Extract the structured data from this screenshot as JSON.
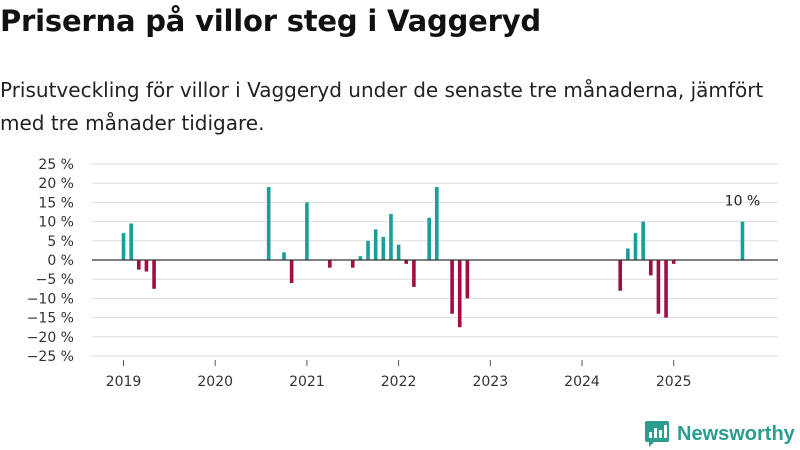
{
  "title": "Priserna på villor steg i Vaggeryd",
  "subtitle": "Prisutveckling för villor i Vaggeryd under de senaste tre månaderna, jämfört med tre månader tidigare.",
  "brand": {
    "name": "Newsworthy",
    "color": "#2a9d8f",
    "icon": "newsworthy-logo-icon"
  },
  "chart_data": {
    "type": "bar",
    "title": "Priserna på villor steg i Vaggeryd",
    "xlabel": "",
    "ylabel": "",
    "ylim": [
      -25,
      25
    ],
    "yticks": [
      25,
      20,
      15,
      10,
      5,
      0,
      -5,
      -10,
      -15,
      -20,
      -25
    ],
    "ytick_labels": [
      "25 %",
      "20 %",
      "15 %",
      "10 %",
      "5 %",
      "0 %",
      "−5 %",
      "−10 %",
      "−15 %",
      "−20 %",
      "−25 %"
    ],
    "x_ticks": [
      "2019",
      "2020",
      "2021",
      "2022",
      "2023",
      "2024",
      "2025"
    ],
    "grid": true,
    "colors": {
      "positive": "#1a9e99",
      "negative": "#9e0e44"
    },
    "annotation": {
      "month": "2025-10",
      "label": "10 %"
    },
    "series": [
      {
        "name": "Prisutveckling",
        "points": [
          {
            "month": "2019-01",
            "value": 7
          },
          {
            "month": "2019-02",
            "value": 9.5
          },
          {
            "month": "2019-03",
            "value": -2.5
          },
          {
            "month": "2019-04",
            "value": -3
          },
          {
            "month": "2019-05",
            "value": -7.5
          },
          {
            "month": "2020-08",
            "value": 19
          },
          {
            "month": "2020-10",
            "value": 2
          },
          {
            "month": "2020-11",
            "value": -6
          },
          {
            "month": "2021-01",
            "value": 15
          },
          {
            "month": "2021-04",
            "value": -2
          },
          {
            "month": "2021-07",
            "value": -2
          },
          {
            "month": "2021-08",
            "value": 1
          },
          {
            "month": "2021-09",
            "value": 5
          },
          {
            "month": "2021-10",
            "value": 8
          },
          {
            "month": "2021-11",
            "value": 6
          },
          {
            "month": "2021-12",
            "value": 12
          },
          {
            "month": "2022-01",
            "value": 4
          },
          {
            "month": "2022-02",
            "value": -1
          },
          {
            "month": "2022-03",
            "value": -7
          },
          {
            "month": "2022-05",
            "value": 11
          },
          {
            "month": "2022-06",
            "value": 19
          },
          {
            "month": "2022-08",
            "value": -14
          },
          {
            "month": "2022-09",
            "value": -17.5
          },
          {
            "month": "2022-10",
            "value": -10
          },
          {
            "month": "2024-06",
            "value": -8
          },
          {
            "month": "2024-07",
            "value": 3
          },
          {
            "month": "2024-08",
            "value": 7
          },
          {
            "month": "2024-09",
            "value": 10
          },
          {
            "month": "2024-10",
            "value": -4
          },
          {
            "month": "2024-11",
            "value": -14
          },
          {
            "month": "2024-12",
            "value": -15
          },
          {
            "month": "2025-01",
            "value": -1
          },
          {
            "month": "2025-10",
            "value": 10
          }
        ]
      }
    ]
  }
}
